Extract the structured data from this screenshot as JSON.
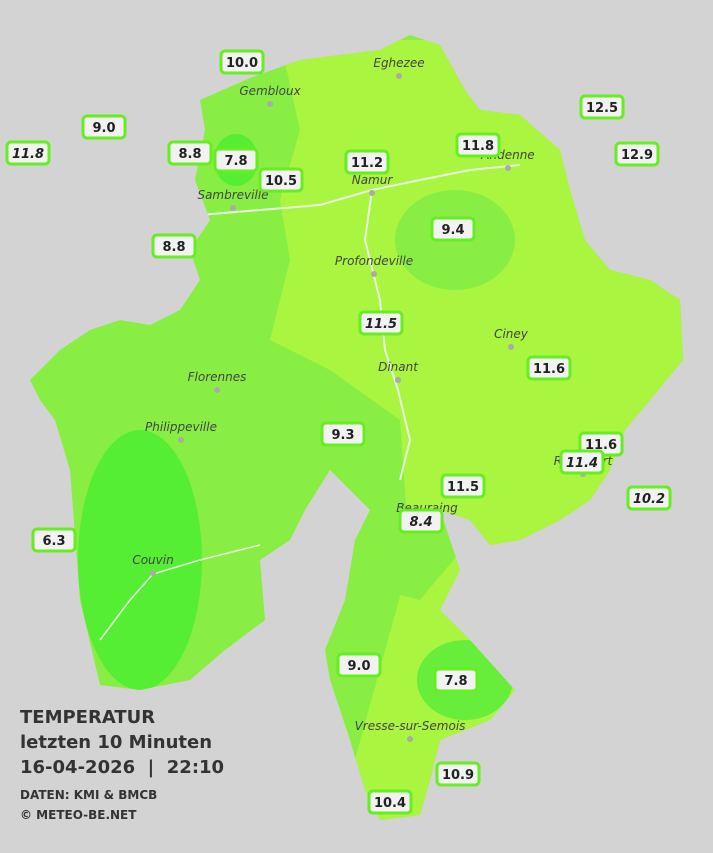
{
  "map": {
    "cities": [
      {
        "name": "Eghezee"
      },
      {
        "name": "Gembloux"
      },
      {
        "name": "Andenne"
      },
      {
        "name": "Namur"
      },
      {
        "name": "Sambreville"
      },
      {
        "name": "Profondeville"
      },
      {
        "name": "Ciney"
      },
      {
        "name": "Dinant"
      },
      {
        "name": "Florennes"
      },
      {
        "name": "Philippeville"
      },
      {
        "name": "Rochefort"
      },
      {
        "name": "Beauraing"
      },
      {
        "name": "Couvin"
      },
      {
        "name": "Vresse-sur-Semois"
      }
    ],
    "stations": [
      {
        "label": "10.0",
        "italic": false
      },
      {
        "label": "9.0",
        "italic": false
      },
      {
        "label": "11.8",
        "italic": true
      },
      {
        "label": "8.8",
        "italic": false
      },
      {
        "label": "7.8",
        "italic": false
      },
      {
        "label": "10.5",
        "italic": false
      },
      {
        "label": "11.2",
        "italic": false
      },
      {
        "label": "11.8",
        "italic": false
      },
      {
        "label": "12.5",
        "italic": false
      },
      {
        "label": "12.9",
        "italic": false
      },
      {
        "label": "8.8",
        "italic": false
      },
      {
        "label": "9.4",
        "italic": false
      },
      {
        "label": "11.5",
        "italic": true
      },
      {
        "label": "11.6",
        "italic": false
      },
      {
        "label": "9.3",
        "italic": false
      },
      {
        "label": "11.6",
        "italic": false
      },
      {
        "label": "11.4",
        "italic": true
      },
      {
        "label": "11.5",
        "italic": false
      },
      {
        "label": "10.2",
        "italic": true
      },
      {
        "label": "8.4",
        "italic": true
      },
      {
        "label": "6.3",
        "italic": false
      },
      {
        "label": "9.0",
        "italic": false
      },
      {
        "label": "7.8",
        "italic": false
      },
      {
        "label": "10.9",
        "italic": false
      },
      {
        "label": "10.4",
        "italic": false
      }
    ]
  },
  "legend": {
    "title": "TEMPERATUR",
    "subtitle": "letzten 10 Minuten",
    "timestamp": "16-04-2026  |  22:10",
    "source": "DATEN: KMI & BMCB",
    "copyright": "© METEO-BE.NET"
  }
}
